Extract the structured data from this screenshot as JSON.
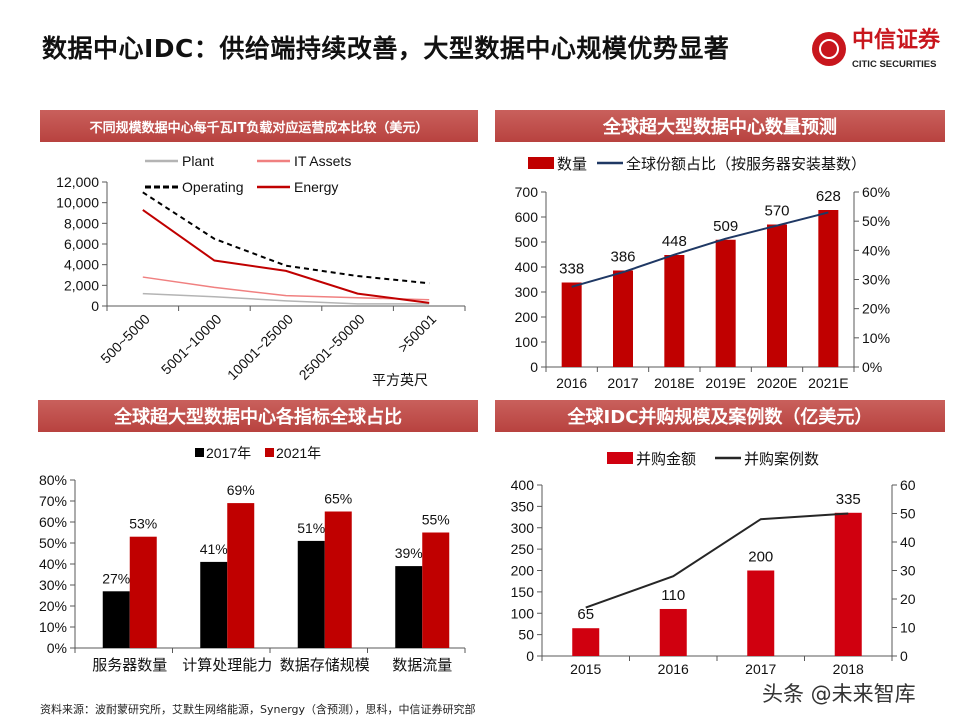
{
  "header": {
    "title": "数据中心IDC：供给端持续改善，大型数据中心规模优势显著",
    "logo_cn": "中信证券",
    "logo_en": "CITIC SECURITIES"
  },
  "footer": {
    "source": "资料来源：波耐蒙研究所，艾默生网络能源，Synergy（含预测），思科，中信证券研究部",
    "watermark": "头条 @未来智库"
  },
  "colors": {
    "banner": "#c0504d",
    "red": "#c00000",
    "navy": "#1f3864",
    "black": "#000000"
  },
  "chart_data": [
    {
      "type": "line",
      "title": "不同规模数据中心每千瓦IT负载对应运营成本比较（美元）",
      "categories": [
        "500~5000",
        "5001~10000",
        "10001~25000",
        "25001~50000",
        ">50001"
      ],
      "xlabel": "平方英尺",
      "ylim": [
        0,
        12000
      ],
      "yticks": [
        "0",
        "2,000",
        "4,000",
        "6,000",
        "8,000",
        "10,000",
        "12,000"
      ],
      "legend": "top",
      "series": [
        {
          "name": "Plant",
          "color": "#b4b4b4",
          "style": "solid",
          "values": [
            1200,
            900,
            500,
            200,
            200
          ]
        },
        {
          "name": "IT Assets",
          "color": "#f08080",
          "style": "solid",
          "values": [
            2800,
            1800,
            1000,
            800,
            600
          ]
        },
        {
          "name": "Operating",
          "color": "#000000",
          "style": "dashed",
          "values": [
            11000,
            6500,
            3900,
            2900,
            2200
          ]
        },
        {
          "name": "Energy",
          "color": "#c00000",
          "style": "solid",
          "values": [
            9300,
            4400,
            3400,
            1200,
            300
          ]
        }
      ]
    },
    {
      "type": "bar+line",
      "title": "全球超大型数据中心数量预测",
      "categories": [
        "2016",
        "2017",
        "2018E",
        "2019E",
        "2020E",
        "2021E"
      ],
      "ylim": [
        0,
        700
      ],
      "yticks": [
        "0",
        "100",
        "200",
        "300",
        "400",
        "500",
        "600",
        "700"
      ],
      "y2lim": [
        0,
        0.6
      ],
      "y2ticks": [
        "0%",
        "10%",
        "20%",
        "30%",
        "40%",
        "50%",
        "60%"
      ],
      "legend": "top",
      "series": [
        {
          "name": "数量",
          "type": "bar",
          "color": "#c00000",
          "values": [
            338,
            386,
            448,
            509,
            570,
            628
          ],
          "labels": [
            "338",
            "386",
            "448",
            "509",
            "570",
            "628"
          ]
        },
        {
          "name": "全球份额占比（按服务器安装基数）",
          "type": "line",
          "axis": "right",
          "color": "#1f3864",
          "values": [
            0.275,
            0.325,
            0.385,
            0.44,
            0.485,
            0.53
          ]
        }
      ]
    },
    {
      "type": "bar",
      "title": "全球超大型数据中心各指标全球占比",
      "categories": [
        "服务器数量",
        "计算处理能力",
        "数据存储规模",
        "数据流量"
      ],
      "ylim": [
        0,
        0.8
      ],
      "yticks": [
        "0%",
        "10%",
        "20%",
        "30%",
        "40%",
        "50%",
        "60%",
        "70%",
        "80%"
      ],
      "legend": "top",
      "series": [
        {
          "name": "2017年",
          "color": "#000000",
          "values": [
            0.27,
            0.41,
            0.51,
            0.39
          ],
          "labels": [
            "27%",
            "41%",
            "51%",
            "39%"
          ]
        },
        {
          "name": "2021年",
          "color": "#c00000",
          "values": [
            0.53,
            0.69,
            0.65,
            0.55
          ],
          "labels": [
            "53%",
            "69%",
            "65%",
            "55%"
          ]
        }
      ]
    },
    {
      "type": "bar+line",
      "title": "全球IDC并购规模及案例数（亿美元）",
      "categories": [
        "2015",
        "2016",
        "2017",
        "2018"
      ],
      "ylim": [
        0,
        400
      ],
      "yticks": [
        "0",
        "50",
        "100",
        "150",
        "200",
        "250",
        "300",
        "350",
        "400"
      ],
      "y2lim": [
        0,
        60
      ],
      "y2ticks": [
        "0",
        "10",
        "20",
        "30",
        "40",
        "50",
        "60"
      ],
      "legend": "top",
      "series": [
        {
          "name": "并购金额",
          "type": "bar",
          "color": "#d0000f",
          "values": [
            65,
            110,
            200,
            335
          ],
          "labels": [
            "65",
            "110",
            "200",
            "335"
          ]
        },
        {
          "name": "并购案例数",
          "type": "line",
          "axis": "right",
          "color": "#262626",
          "values": [
            17,
            28,
            48,
            50
          ]
        }
      ]
    }
  ]
}
